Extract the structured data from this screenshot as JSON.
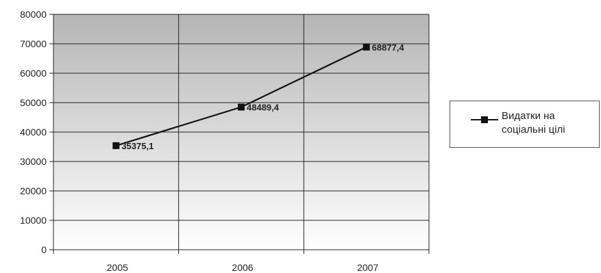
{
  "chart_data": {
    "type": "line",
    "x": [
      "2005",
      "2006",
      "2007"
    ],
    "series": [
      {
        "name": "Видатки на соціальні цілі",
        "values": [
          35375.1,
          48489.4,
          68877.4
        ]
      }
    ],
    "data_labels": [
      "35375,1",
      "48489,4",
      "68877,4"
    ],
    "y_ticks": [
      "0",
      "10000",
      "20000",
      "30000",
      "40000",
      "50000",
      "60000",
      "70000",
      "80000"
    ],
    "ylim": [
      0,
      80000
    ],
    "grid": true,
    "legend_position": "right",
    "colors": {
      "line": "#111111",
      "plot_top": "#b8b8b8",
      "plot_bottom": "#ffffff"
    }
  },
  "legend": {
    "label": "Видатки на соціальні цілі"
  }
}
